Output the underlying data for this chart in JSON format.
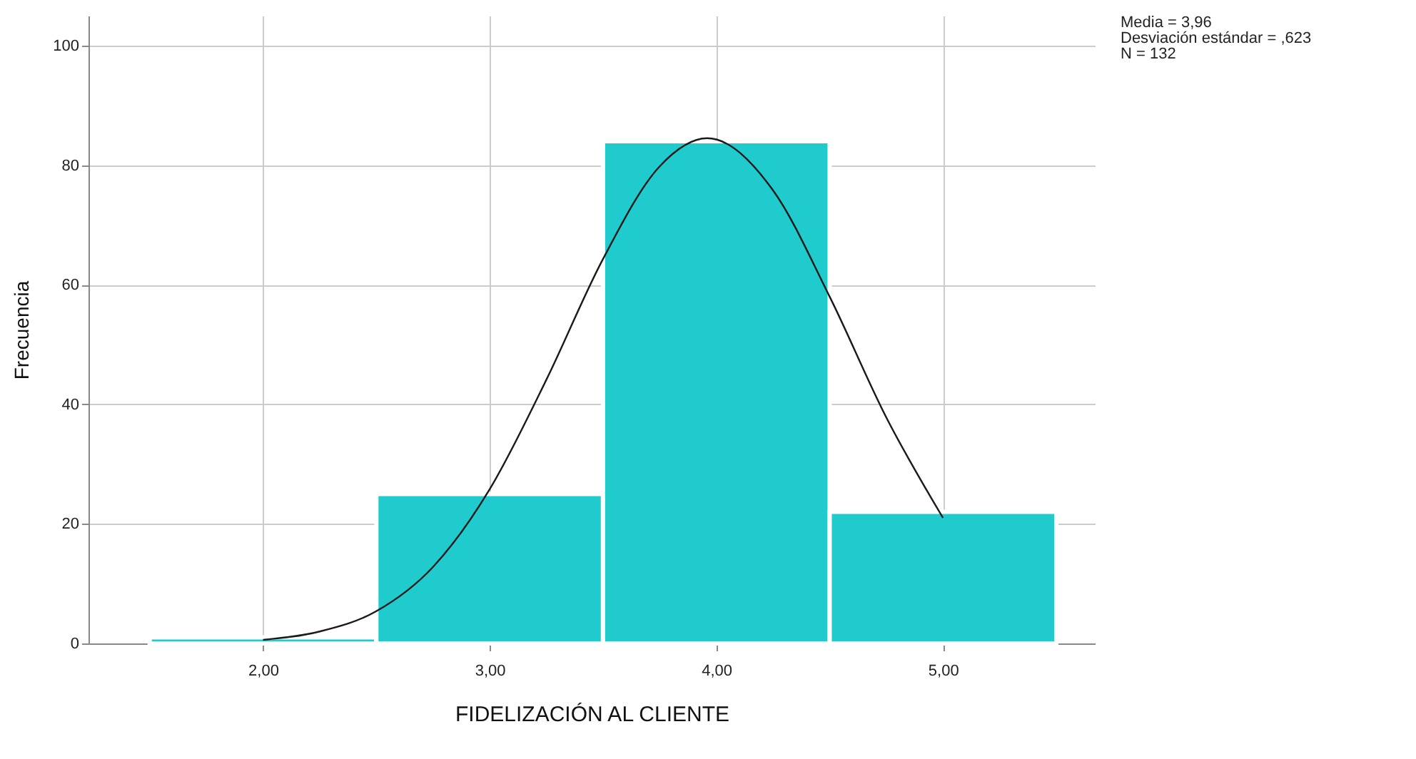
{
  "chart_data": {
    "type": "histogram",
    "xlabel": "FIDELIZACIÓN AL CLIENTE",
    "ylabel": "Frecuencia",
    "annotations": [
      "Media = 3,96",
      "Desviación estándar = ,623",
      "N = 132"
    ],
    "xlim": [
      1.23,
      5.67
    ],
    "xticks": [
      {
        "value": 2,
        "label": "2,00"
      },
      {
        "value": 3,
        "label": "3,00"
      },
      {
        "value": 4,
        "label": "4,00"
      },
      {
        "value": 5,
        "label": "5,00"
      }
    ],
    "ylim": [
      0,
      105
    ],
    "yticks": [
      0,
      20,
      40,
      60,
      80,
      100
    ],
    "grid": true,
    "series": [
      {
        "color": "#1fcbcd",
        "bins": [
          1.5,
          2.5,
          3.5,
          4.5,
          5.5
        ],
        "values": [
          1,
          25,
          84,
          22
        ]
      },
      {
        "type": "line",
        "color": "#1a1a1a",
        "x": [
          2,
          2.25,
          2.5,
          2.75,
          3,
          3.25,
          3.5,
          3.75,
          3.96,
          4.25,
          4.5,
          4.75,
          5
        ],
        "values": [
          0.6,
          2,
          5.4,
          12.8,
          25.8,
          44.1,
          64.3,
          79.8,
          84.5,
          75.8,
          58,
          37.8,
          21
        ]
      }
    ]
  }
}
